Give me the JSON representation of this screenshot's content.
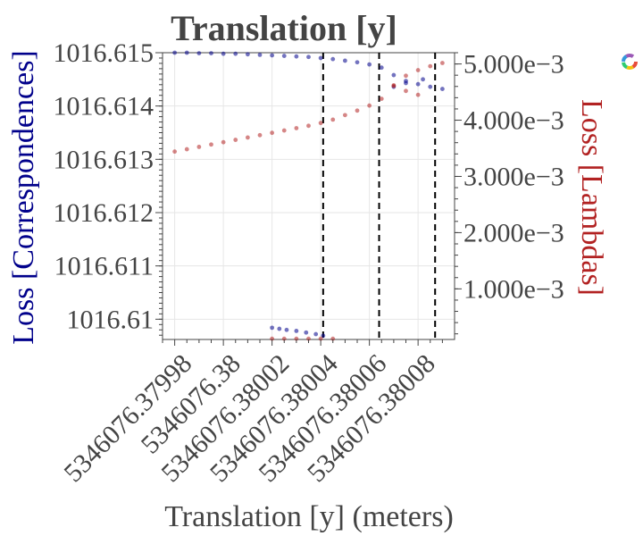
{
  "chart_data": {
    "type": "scatter",
    "title": "Translation [y]",
    "xlabel": "Translation [y] (meters)",
    "ylabel_left": "Loss [Correspondences]",
    "ylabel_right": "Loss [Lambdas]",
    "x_ticks": [
      "5346076.37998",
      "5346076.38",
      "5346076.38002",
      "5346076.38004",
      "5346076.38006",
      "5346076.38008"
    ],
    "left_ticks": [
      "1016.615",
      "1016.614",
      "1016.613",
      "1016.612",
      "1016.611",
      "1016.61"
    ],
    "right_ticks": [
      "5.000e−3",
      "4.000e−3",
      "3.000e−3",
      "2.000e−3",
      "1.000e−3"
    ],
    "xlim": [
      5346076.379975,
      5346076.380095
    ],
    "ylim_left": [
      1016.60962,
      1016.615
    ],
    "ylim_right": [
      0.0001,
      0.0052
    ],
    "vlines": [
      5346076.380041,
      5346076.380064,
      5346076.380087
    ],
    "grid": true,
    "series": [
      {
        "axis": "left",
        "color": "#00008b",
        "points": [
          [
            5346076.37998,
            1016.615
          ],
          [
            5346076.379985,
            1016.615
          ],
          [
            5346076.37999,
            1016.61499
          ],
          [
            5346076.379995,
            1016.61499
          ],
          [
            5346076.38,
            1016.61498
          ],
          [
            5346076.380005,
            1016.61498
          ],
          [
            5346076.38001,
            1016.61497
          ],
          [
            5346076.380015,
            1016.61496
          ],
          [
            5346076.38002,
            1016.61495
          ],
          [
            5346076.380025,
            1016.61494
          ],
          [
            5346076.38003,
            1016.61493
          ],
          [
            5346076.380035,
            1016.61492
          ],
          [
            5346076.38004,
            1016.6149
          ],
          [
            5346076.380045,
            1016.61488
          ],
          [
            5346076.38005,
            1016.61485
          ],
          [
            5346076.380055,
            1016.61482
          ],
          [
            5346076.38006,
            1016.61478
          ],
          [
            5346076.380065,
            1016.61472
          ],
          [
            5346076.38007,
            1016.61458
          ],
          [
            5346076.380075,
            1016.61447
          ],
          [
            5346076.38008,
            1016.61441
          ],
          [
            5346076.380085,
            1016.61436
          ],
          [
            5346076.38009,
            1016.61432
          ],
          [
            5346076.38007,
            1016.61436
          ],
          [
            5346076.380075,
            1016.61443
          ],
          [
            5346076.380082,
            1016.6145
          ],
          [
            5346076.38002,
            1016.60984
          ],
          [
            5346076.380023,
            1016.60982
          ],
          [
            5346076.380026,
            1016.6098
          ],
          [
            5346076.38003,
            1016.60978
          ],
          [
            5346076.380034,
            1016.60975
          ],
          [
            5346076.380038,
            1016.60972
          ],
          [
            5346076.380041,
            1016.60969
          ]
        ]
      },
      {
        "axis": "right",
        "color": "#b22222",
        "points": [
          [
            5346076.37998,
            0.003442
          ],
          [
            5346076.379985,
            0.003483
          ],
          [
            5346076.37999,
            0.003525
          ],
          [
            5346076.379995,
            0.003567
          ],
          [
            5346076.38,
            0.003608
          ],
          [
            5346076.380005,
            0.00365
          ],
          [
            5346076.38001,
            0.003692
          ],
          [
            5346076.380015,
            0.003733
          ],
          [
            5346076.38002,
            0.003775
          ],
          [
            5346076.380025,
            0.003817
          ],
          [
            5346076.38003,
            0.003858
          ],
          [
            5346076.380035,
            0.0039
          ],
          [
            5346076.38004,
            0.00395
          ],
          [
            5346076.380045,
            0.00401
          ],
          [
            5346076.38005,
            0.00409
          ],
          [
            5346076.380055,
            0.00417
          ],
          [
            5346076.38006,
            0.00426
          ],
          [
            5346076.380065,
            0.00438
          ],
          [
            5346076.38007,
            0.00462
          ],
          [
            5346076.380075,
            0.00479
          ],
          [
            5346076.38008,
            0.00489
          ],
          [
            5346076.380085,
            0.00496
          ],
          [
            5346076.38009,
            0.005017
          ],
          [
            5346076.38007,
            0.00461
          ],
          [
            5346076.380075,
            0.00452
          ],
          [
            5346076.38008,
            0.00445
          ],
          [
            5346076.38002,
            0.000113
          ],
          [
            5346076.380025,
            0.000113
          ],
          [
            5346076.38003,
            0.000113
          ],
          [
            5346076.380035,
            0.000113
          ],
          [
            5346076.38004,
            0.000113
          ],
          [
            5346076.380045,
            0.000113
          ]
        ]
      }
    ]
  }
}
